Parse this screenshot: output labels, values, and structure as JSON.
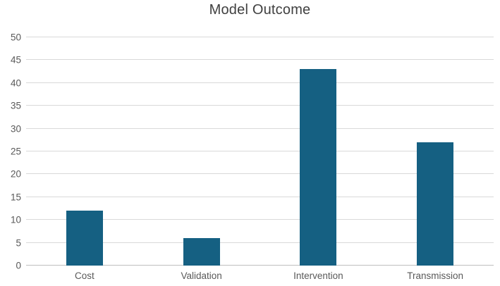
{
  "chart_data": {
    "type": "bar",
    "title": "Model Outcome",
    "categories": [
      "Cost",
      "Validation",
      "Intervention",
      "Transmission"
    ],
    "values": [
      12,
      6,
      43,
      27
    ],
    "xlabel": "",
    "ylabel": "",
    "ylim": [
      0,
      50
    ],
    "ytick_step": 5,
    "ytick_labels": [
      "0",
      "5",
      "10",
      "15",
      "20",
      "25",
      "30",
      "35",
      "40",
      "45",
      "50"
    ],
    "grid": true,
    "legend": "none",
    "bar_color": "#156082",
    "gridline_color": "#d9d9d9",
    "axis_line_color": "#bfbfbf",
    "title_color": "#404040",
    "tick_label_color": "#595959"
  }
}
